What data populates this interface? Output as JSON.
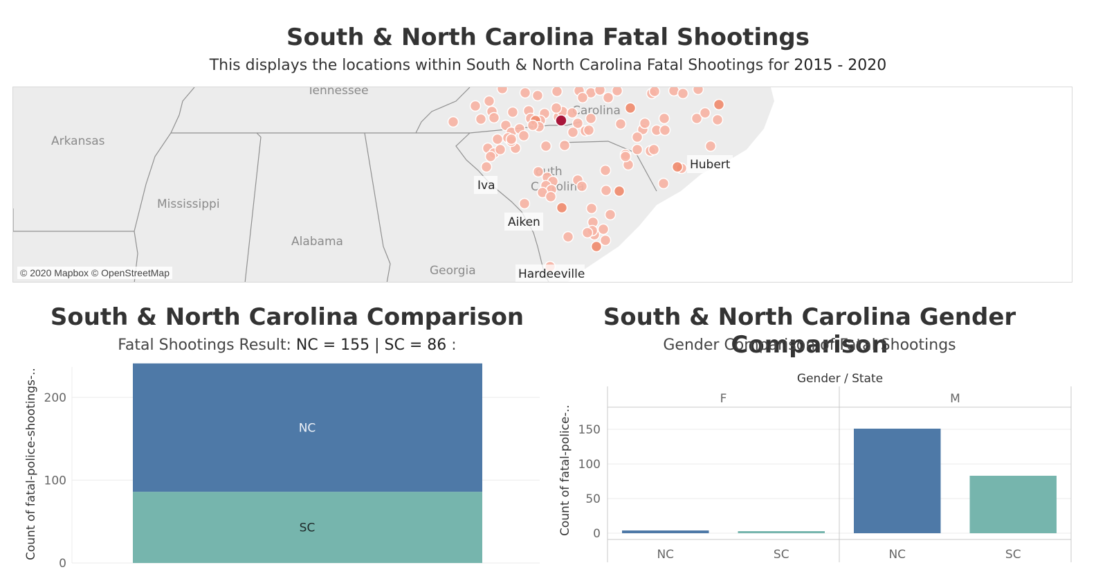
{
  "header": {
    "title": "South & North Carolina Fatal Shootings",
    "subtitle_prefix": "This displays the locations within South & North Carolina Fatal Shootings for ",
    "subtitle_range": "2015 - 2020"
  },
  "map": {
    "attribution": "© 2020 Mapbox © OpenStreetMap",
    "region_labels": [
      "Tennessee",
      "Arkansas",
      "Mississippi",
      "Alabama",
      "Georgia",
      "Carolina",
      "outh",
      "C",
      "rolina"
    ],
    "city_labels": [
      "Hubert",
      "Iva",
      "Aiken",
      "Hardeeville"
    ],
    "colors": {
      "point_light": "#f7b3a3",
      "point_mid": "#ef8a6b",
      "point_dark": "#a8163a",
      "land": "#ececec"
    }
  },
  "comparison": {
    "title": "South & North Carolina Comparison",
    "subtitle_prefix": "Fatal Shootings Result: ",
    "subtitle_values": "NC = 155 | SC = 86",
    "subtitle_suffix": "  :"
  },
  "gender": {
    "title": "South & North Carolina Gender Comparison",
    "subtitle": "Gender Comparison of Fatal Shootings"
  },
  "chart_data": [
    {
      "type": "bar",
      "stacked": true,
      "ylabel": "Count of fatal-police-shootings-..",
      "yticks": [
        0,
        100,
        200
      ],
      "ylim": [
        0,
        245
      ],
      "series": [
        {
          "name": "SC",
          "values": [
            86
          ],
          "color": "#76b5ad"
        },
        {
          "name": "NC",
          "values": [
            155
          ],
          "color": "#4e79a7"
        }
      ]
    },
    {
      "type": "bar",
      "header": "Gender  /  State",
      "ylabel": "Count of fatal-police-..",
      "yticks": [
        0,
        50,
        100,
        150
      ],
      "ylim": [
        -8,
        180
      ],
      "panels": [
        {
          "label": "F",
          "categories": [
            "NC",
            "SC"
          ],
          "values": [
            4,
            3
          ]
        },
        {
          "label": "M",
          "categories": [
            "NC",
            "SC"
          ],
          "values": [
            151,
            83
          ]
        }
      ],
      "colors": {
        "NC": "#4e79a7",
        "SC": "#76b5ad"
      }
    }
  ]
}
